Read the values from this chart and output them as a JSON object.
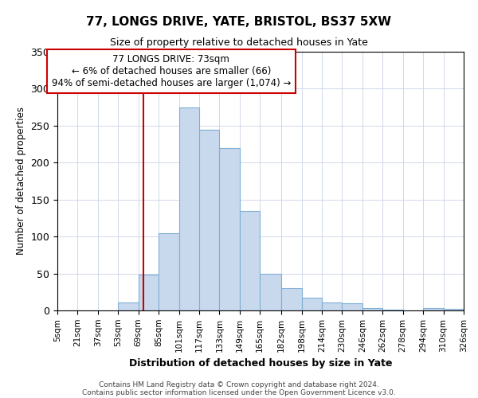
{
  "title1": "77, LONGS DRIVE, YATE, BRISTOL, BS37 5XW",
  "title2": "Size of property relative to detached houses in Yate",
  "xlabel": "Distribution of detached houses by size in Yate",
  "ylabel": "Number of detached properties",
  "footnote1": "Contains HM Land Registry data © Crown copyright and database right 2024.",
  "footnote2": "Contains public sector information licensed under the Open Government Licence v3.0.",
  "annotation_line1": "77 LONGS DRIVE: 73sqm",
  "annotation_line2": "← 6% of detached houses are smaller (66)",
  "annotation_line3": "94% of semi-detached houses are larger (1,074) →",
  "bar_color": "#c9d9ed",
  "bar_edge_color": "#7fafd4",
  "vline_color": "#cc0000",
  "annotation_box_edge": "#cc0000",
  "bins": [
    5,
    21,
    37,
    53,
    69,
    85,
    101,
    117,
    133,
    149,
    165,
    182,
    198,
    214,
    230,
    246,
    262,
    278,
    294,
    310,
    326
  ],
  "counts": [
    0,
    0,
    0,
    11,
    48,
    105,
    275,
    244,
    220,
    135,
    50,
    30,
    17,
    11,
    10,
    3,
    1,
    0,
    3,
    2
  ],
  "property_sqm": 73,
  "ylim": [
    0,
    350
  ],
  "yticks": [
    0,
    50,
    100,
    150,
    200,
    250,
    300,
    350
  ],
  "tick_labels": [
    "5sqm",
    "21sqm",
    "37sqm",
    "53sqm",
    "69sqm",
    "85sqm",
    "101sqm",
    "117sqm",
    "133sqm",
    "149sqm",
    "165sqm",
    "182sqm",
    "198sqm",
    "214sqm",
    "230sqm",
    "246sqm",
    "262sqm",
    "278sqm",
    "294sqm",
    "310sqm",
    "326sqm"
  ]
}
